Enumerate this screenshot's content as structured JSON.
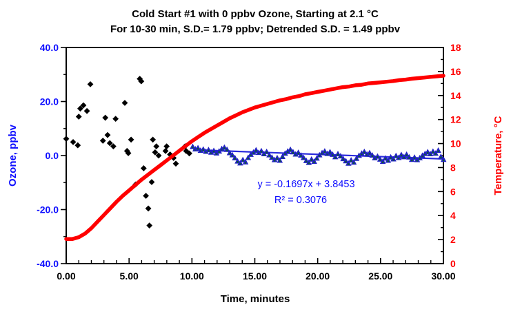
{
  "title": {
    "line1": "Cold Start #1 with 0 ppbv Ozone, Starting at 2.1 °C",
    "line2": "For 10-30 min, S.D.= 1.79 ppbv; Detrended  S.D. = 1.49 ppbv"
  },
  "annotation": {
    "line1": "y = -0.1697x + 3.8453",
    "line2": "R² = 0.3076",
    "color": "#0d0dff"
  },
  "axes": {
    "x": {
      "label": "Time, minutes",
      "min": 0,
      "max": 30,
      "minor_step": 1,
      "major_ticks": [
        0,
        5,
        10,
        15,
        20,
        25,
        30
      ],
      "tick_labels": [
        "0.00",
        "5.00",
        "10.00",
        "15.00",
        "20.00",
        "25.00",
        "30.00"
      ],
      "color": "#000000"
    },
    "y_left": {
      "label": "Ozone, ppbv",
      "min": -40,
      "max": 40,
      "major_ticks": [
        -40,
        -20,
        0,
        20,
        40
      ],
      "minor_ticks": [
        -30,
        -10,
        10,
        30
      ],
      "tick_labels": [
        "-40.0",
        "-20.0",
        "0.0",
        "20.0",
        "40.0"
      ],
      "color": "#0d0dff"
    },
    "y_right": {
      "label": "Temperature, °C",
      "min": 0,
      "max": 18,
      "major_ticks": [
        0,
        2,
        4,
        6,
        8,
        10,
        12,
        14,
        16,
        18
      ],
      "minor_ticks": [
        1,
        3,
        5,
        7,
        9,
        11,
        13,
        15,
        17
      ],
      "tick_labels": [
        "0",
        "2",
        "4",
        "6",
        "8",
        "10",
        "12",
        "14",
        "16",
        "18"
      ],
      "color": "#ff0000"
    }
  },
  "chart_data": {
    "type": "scatter",
    "xlabel": "Time, minutes",
    "x_range": [
      0,
      30
    ],
    "y_left_range": [
      -40,
      40
    ],
    "y_right_range": [
      0,
      18
    ],
    "grid": false,
    "legend": "none",
    "trendline": {
      "slope": -0.1697,
      "intercept": 3.8453,
      "x_start": 10.1,
      "x_end": 30,
      "color": "#2b2bdd",
      "equation": "y = -0.1697x + 3.8453",
      "r_squared": 0.3076
    },
    "series": [
      {
        "name": "ozone-startup",
        "axis": "left",
        "marker": "diamond",
        "color": "#000000",
        "points": [
          [
            0.0,
            6.2
          ],
          [
            0.55,
            5.0
          ],
          [
            0.92,
            3.8
          ],
          [
            1.0,
            14.4
          ],
          [
            1.12,
            17.4
          ],
          [
            1.37,
            18.6
          ],
          [
            1.65,
            16.5
          ],
          [
            1.92,
            26.4
          ],
          [
            2.92,
            5.5
          ],
          [
            3.11,
            14.0
          ],
          [
            3.29,
            7.6
          ],
          [
            3.47,
            4.6
          ],
          [
            3.75,
            3.4
          ],
          [
            3.93,
            13.6
          ],
          [
            4.66,
            19.5
          ],
          [
            4.84,
            1.7
          ],
          [
            4.94,
            0.9
          ],
          [
            5.16,
            5.9
          ],
          [
            5.52,
            -10.7
          ],
          [
            5.85,
            28.4
          ],
          [
            5.97,
            27.5
          ],
          [
            6.16,
            -4.7
          ],
          [
            6.34,
            -14.9
          ],
          [
            6.53,
            -19.6
          ],
          [
            6.62,
            -25.9
          ],
          [
            6.8,
            -9.8
          ],
          [
            6.89,
            5.9
          ],
          [
            7.07,
            1.2
          ],
          [
            7.17,
            3.4
          ],
          [
            7.35,
            0.0
          ],
          [
            7.9,
            1.7
          ],
          [
            7.99,
            3.4
          ],
          [
            8.26,
            0.4
          ],
          [
            8.54,
            -0.9
          ],
          [
            8.72,
            -3.0
          ],
          [
            9.45,
            3.4
          ],
          [
            9.54,
            1.7
          ],
          [
            9.79,
            0.8
          ]
        ]
      },
      {
        "name": "ozone-10-30min",
        "axis": "left",
        "marker": "triangle",
        "color": "#2222c4",
        "dot_color": "#0b5e2e",
        "points": [
          [
            10.06,
            3.3
          ],
          [
            10.27,
            2.4
          ],
          [
            10.48,
            2.8
          ],
          [
            10.69,
            1.9
          ],
          [
            10.9,
            2.3
          ],
          [
            11.11,
            1.5
          ],
          [
            11.32,
            2.1
          ],
          [
            11.53,
            1.2
          ],
          [
            11.74,
            1.8
          ],
          [
            11.95,
            0.9
          ],
          [
            12.16,
            1.6
          ],
          [
            12.37,
            2.5
          ],
          [
            12.58,
            3.0
          ],
          [
            12.79,
            2.2
          ],
          [
            13.0,
            1.0
          ],
          [
            13.21,
            0.2
          ],
          [
            13.42,
            -0.9
          ],
          [
            13.63,
            -2.1
          ],
          [
            13.84,
            -2.8
          ],
          [
            14.05,
            -1.6
          ],
          [
            14.26,
            -2.4
          ],
          [
            14.47,
            -0.8
          ],
          [
            14.68,
            0.4
          ],
          [
            14.89,
            1.2
          ],
          [
            15.1,
            2.0
          ],
          [
            15.31,
            1.1
          ],
          [
            15.52,
            1.7
          ],
          [
            15.73,
            0.6
          ],
          [
            15.94,
            1.4
          ],
          [
            16.15,
            0.2
          ],
          [
            16.36,
            -0.7
          ],
          [
            16.57,
            -1.6
          ],
          [
            16.78,
            -0.9
          ],
          [
            16.99,
            -1.8
          ],
          [
            17.2,
            -0.4
          ],
          [
            17.41,
            0.8
          ],
          [
            17.62,
            1.6
          ],
          [
            17.83,
            2.2
          ],
          [
            18.04,
            1.3
          ],
          [
            18.25,
            0.5
          ],
          [
            18.46,
            1.1
          ],
          [
            18.67,
            0.1
          ],
          [
            18.88,
            -0.8
          ],
          [
            19.09,
            -1.9
          ],
          [
            19.3,
            -2.6
          ],
          [
            19.51,
            -1.4
          ],
          [
            19.72,
            -2.2
          ],
          [
            19.93,
            -1.0
          ],
          [
            20.14,
            0.2
          ],
          [
            20.35,
            1.0
          ],
          [
            20.56,
            1.6
          ],
          [
            20.77,
            0.7
          ],
          [
            20.98,
            1.3
          ],
          [
            21.19,
            0.4
          ],
          [
            21.4,
            -0.5
          ],
          [
            21.61,
            0.6
          ],
          [
            21.82,
            -0.2
          ],
          [
            22.03,
            -1.2
          ],
          [
            22.24,
            -2.0
          ],
          [
            22.45,
            -2.9
          ],
          [
            22.66,
            -1.7
          ],
          [
            22.87,
            -2.5
          ],
          [
            23.08,
            -1.1
          ],
          [
            23.29,
            0.0
          ],
          [
            23.5,
            0.8
          ],
          [
            23.71,
            1.4
          ],
          [
            23.92,
            0.5
          ],
          [
            24.13,
            1.0
          ],
          [
            24.34,
            0.1
          ],
          [
            24.55,
            -0.9
          ],
          [
            24.76,
            -0.3
          ],
          [
            24.97,
            -1.4
          ],
          [
            25.18,
            -2.2
          ],
          [
            25.39,
            -1.0
          ],
          [
            25.6,
            -1.8
          ],
          [
            25.81,
            -0.6
          ],
          [
            26.02,
            -1.3
          ],
          [
            26.23,
            -0.1
          ],
          [
            26.44,
            -0.8
          ],
          [
            26.65,
            0.3
          ],
          [
            26.86,
            -0.5
          ],
          [
            27.07,
            0.4
          ],
          [
            27.28,
            -0.6
          ],
          [
            27.49,
            -1.5
          ],
          [
            27.7,
            -0.7
          ],
          [
            27.91,
            -1.6
          ],
          [
            28.12,
            -0.9
          ],
          [
            28.33,
            0.0
          ],
          [
            28.54,
            0.7
          ],
          [
            28.75,
            1.3
          ],
          [
            28.96,
            0.6
          ],
          [
            29.17,
            1.5
          ],
          [
            29.38,
            0.8
          ],
          [
            29.59,
            1.9
          ],
          [
            29.8,
            -0.4
          ],
          [
            30.01,
            -1.5
          ]
        ]
      },
      {
        "name": "temperature",
        "axis": "right",
        "marker": "thick-line",
        "color": "#ff0000",
        "points": [
          [
            0,
            2.05
          ],
          [
            0.5,
            2.05
          ],
          [
            1,
            2.2
          ],
          [
            1.5,
            2.5
          ],
          [
            2,
            2.95
          ],
          [
            2.5,
            3.5
          ],
          [
            3,
            4.05
          ],
          [
            3.5,
            4.6
          ],
          [
            4,
            5.15
          ],
          [
            4.5,
            5.65
          ],
          [
            5,
            6.1
          ],
          [
            5.5,
            6.55
          ],
          [
            6,
            7.0
          ],
          [
            6.5,
            7.4
          ],
          [
            7,
            7.8
          ],
          [
            7.5,
            8.2
          ],
          [
            8,
            8.6
          ],
          [
            8.5,
            9.0
          ],
          [
            9,
            9.4
          ],
          [
            9.5,
            9.8
          ],
          [
            10,
            10.2
          ],
          [
            10.5,
            10.55
          ],
          [
            11,
            10.9
          ],
          [
            11.5,
            11.2
          ],
          [
            12,
            11.5
          ],
          [
            12.5,
            11.8
          ],
          [
            13,
            12.1
          ],
          [
            13.5,
            12.35
          ],
          [
            14,
            12.6
          ],
          [
            14.5,
            12.8
          ],
          [
            15,
            13.0
          ],
          [
            15.5,
            13.15
          ],
          [
            16,
            13.3
          ],
          [
            16.5,
            13.45
          ],
          [
            17,
            13.6
          ],
          [
            17.5,
            13.7
          ],
          [
            18,
            13.85
          ],
          [
            18.5,
            13.95
          ],
          [
            19,
            14.1
          ],
          [
            19.5,
            14.2
          ],
          [
            20,
            14.3
          ],
          [
            20.5,
            14.4
          ],
          [
            21,
            14.5
          ],
          [
            21.5,
            14.6
          ],
          [
            22,
            14.7
          ],
          [
            22.5,
            14.75
          ],
          [
            23,
            14.85
          ],
          [
            23.5,
            14.9
          ],
          [
            24,
            15.0
          ],
          [
            24.5,
            15.05
          ],
          [
            25,
            15.1
          ],
          [
            25.5,
            15.15
          ],
          [
            26,
            15.2
          ],
          [
            26.5,
            15.28
          ],
          [
            27,
            15.33
          ],
          [
            27.5,
            15.4
          ],
          [
            28,
            15.45
          ],
          [
            28.5,
            15.5
          ],
          [
            29,
            15.55
          ],
          [
            29.5,
            15.6
          ],
          [
            30,
            15.65
          ]
        ]
      }
    ]
  }
}
